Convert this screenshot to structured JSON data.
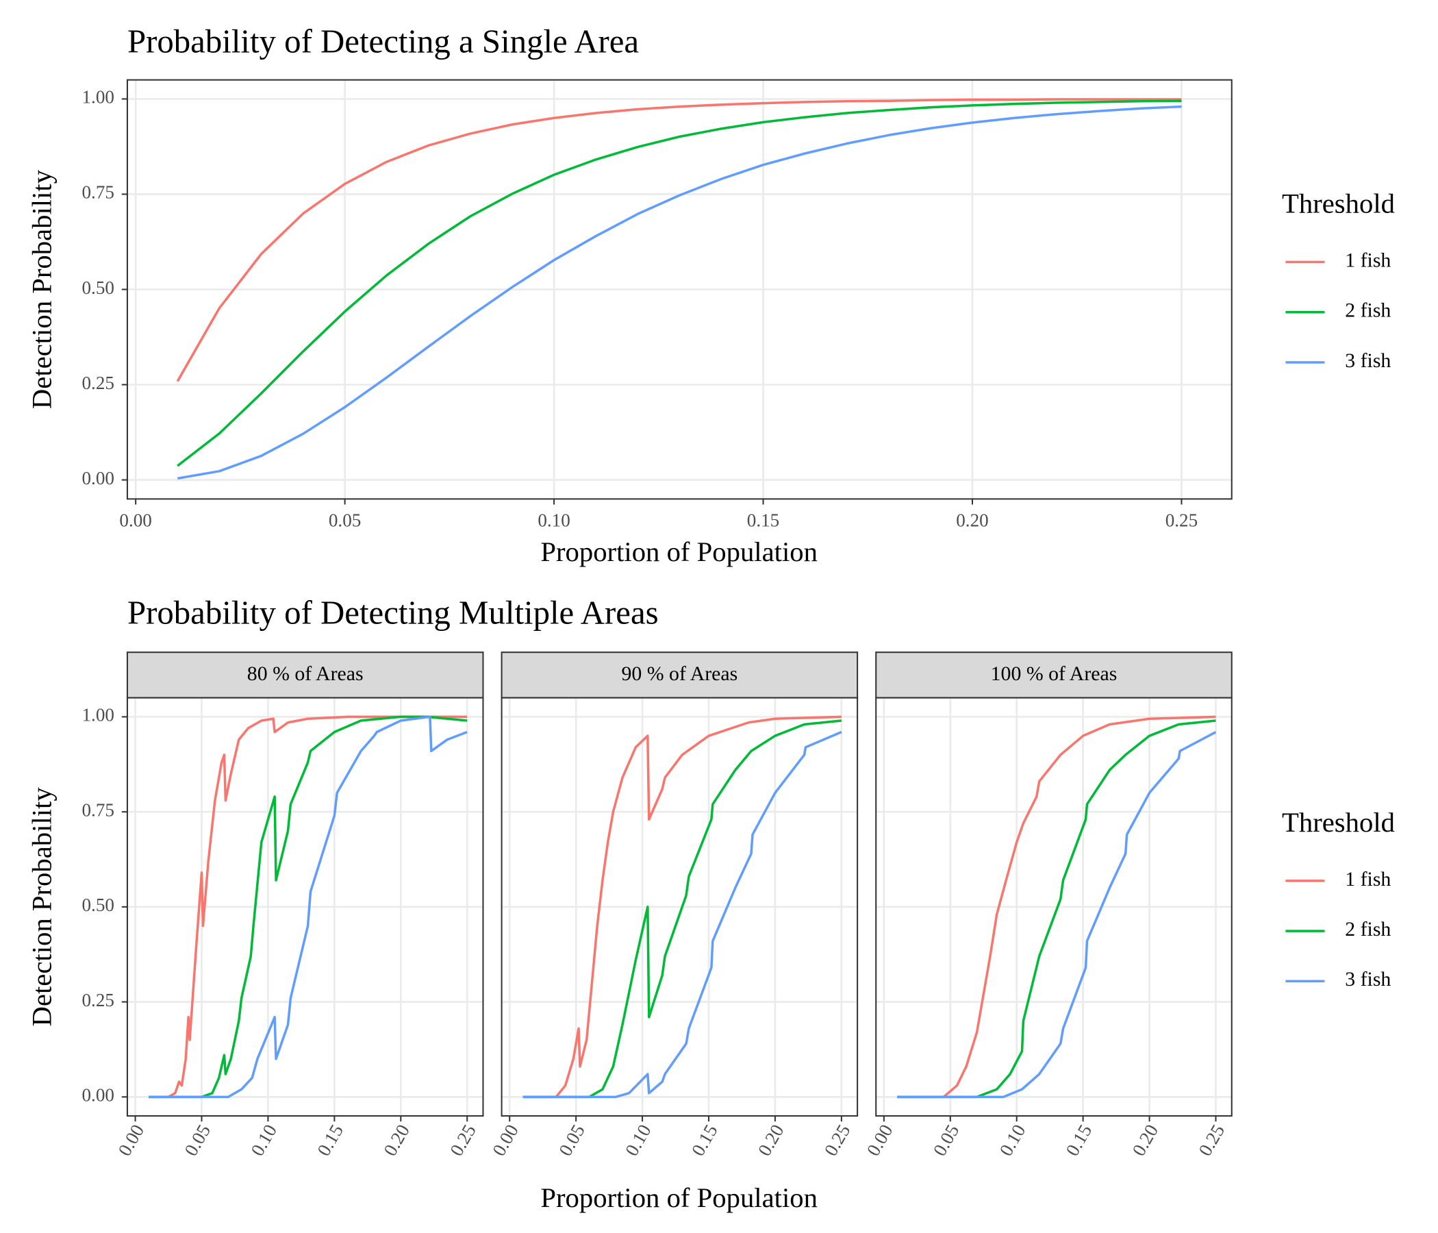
{
  "chart_data": [
    {
      "type": "line",
      "title": "Probability of Detecting a Single Area",
      "x_label": "Proportion of Population",
      "y_label": "Detection Probability",
      "legend_title": "Threshold",
      "grid": true,
      "xlim": [
        -0.002,
        0.262
      ],
      "ylim": [
        -0.05,
        1.05
      ],
      "xticks": [
        {
          "value": 0,
          "label": "0.00"
        },
        0.05,
        {
          "value": 0.1,
          "label": "0.10"
        },
        0.15,
        {
          "value": 0.2,
          "label": "0.20"
        },
        0.25
      ],
      "yticks": [
        {
          "value": 0,
          "label": "0.00"
        },
        0.25,
        {
          "value": 0.5,
          "label": "0.50"
        },
        0.75,
        {
          "value": 1,
          "label": "1.00"
        }
      ],
      "x": [
        0.01,
        0.02,
        0.03,
        0.04,
        0.05,
        0.06,
        0.07,
        0.08,
        0.09,
        0.1,
        0.11,
        0.12,
        0.13,
        0.14,
        0.15,
        0.16,
        0.17,
        0.18,
        0.19,
        0.2,
        0.21,
        0.22,
        0.23,
        0.24,
        0.25
      ],
      "series": [
        {
          "name": "1 fish",
          "color": "#F8766D",
          "values": [
            0.259,
            0.451,
            0.593,
            0.699,
            0.777,
            0.835,
            0.878,
            0.909,
            0.933,
            0.95,
            0.963,
            0.973,
            0.98,
            0.985,
            0.989,
            0.992,
            0.994,
            0.995,
            0.997,
            0.998,
            0.998,
            0.999,
            0.999,
            0.999,
            0.999
          ]
        },
        {
          "name": "2 fish",
          "color": "#00BA38",
          "values": [
            0.037,
            0.122,
            0.227,
            0.337,
            0.442,
            0.537,
            0.62,
            0.692,
            0.751,
            0.801,
            0.841,
            0.874,
            0.901,
            0.922,
            0.939,
            0.952,
            0.963,
            0.971,
            0.978,
            0.983,
            0.987,
            0.99,
            0.992,
            0.994,
            0.995
          ]
        },
        {
          "name": "3 fish",
          "color": "#619CFF",
          "values": [
            0.004,
            0.023,
            0.063,
            0.121,
            0.191,
            0.269,
            0.35,
            0.43,
            0.506,
            0.577,
            0.64,
            0.698,
            0.747,
            0.79,
            0.827,
            0.857,
            0.883,
            0.905,
            0.923,
            0.938,
            0.95,
            0.96,
            0.968,
            0.975,
            0.98
          ]
        }
      ]
    },
    {
      "type": "line",
      "title": "Probability of Detecting Multiple Areas",
      "x_label": "Proportion of Population",
      "y_label": "Detection Probability",
      "legend_title": "Threshold",
      "grid": true,
      "facets": [
        "80 % of Areas",
        "90 % of Areas",
        "100 % of Areas"
      ],
      "xlim": [
        -0.006,
        0.262
      ],
      "ylim": [
        -0.05,
        1.05
      ],
      "xticks": [
        {
          "value": 0,
          "label": "0.00"
        },
        0.05,
        {
          "value": 0.1,
          "label": "0.10"
        },
        0.15,
        {
          "value": 0.2,
          "label": "0.20"
        },
        0.25
      ],
      "yticks": [
        {
          "value": 0,
          "label": "0.00"
        },
        0.25,
        {
          "value": 0.5,
          "label": "0.50"
        },
        0.75,
        {
          "value": 1,
          "label": "1.00"
        }
      ],
      "series": [
        {
          "name": "1 fish",
          "color": "#F8766D",
          "facets": [
            {
              "x": [
                0.01,
                0.025,
                0.03,
                0.033,
                0.035,
                0.038,
                0.04,
                0.041,
                0.043,
                0.046,
                0.05,
                0.051,
                0.055,
                0.06,
                0.065,
                0.067,
                0.068,
                0.072,
                0.078,
                0.085,
                0.095,
                0.104,
                0.105,
                0.115,
                0.13,
                0.16,
                0.25
              ],
              "values": [
                0,
                0,
                0.01,
                0.04,
                0.03,
                0.1,
                0.21,
                0.15,
                0.25,
                0.4,
                0.59,
                0.45,
                0.62,
                0.78,
                0.88,
                0.9,
                0.78,
                0.85,
                0.94,
                0.97,
                0.99,
                0.995,
                0.96,
                0.985,
                0.995,
                1,
                1
              ]
            },
            {
              "x": [
                0.01,
                0.035,
                0.042,
                0.048,
                0.052,
                0.053,
                0.058,
                0.062,
                0.066,
                0.07,
                0.074,
                0.078,
                0.085,
                0.095,
                0.104,
                0.105,
                0.115,
                0.117,
                0.13,
                0.15,
                0.18,
                0.2,
                0.25
              ],
              "values": [
                0,
                0,
                0.03,
                0.1,
                0.18,
                0.08,
                0.15,
                0.3,
                0.45,
                0.57,
                0.67,
                0.75,
                0.84,
                0.92,
                0.95,
                0.73,
                0.81,
                0.84,
                0.9,
                0.95,
                0.985,
                0.995,
                1
              ]
            },
            {
              "x": [
                0.01,
                0.045,
                0.055,
                0.062,
                0.07,
                0.075,
                0.08,
                0.085,
                0.092,
                0.1,
                0.105,
                0.115,
                0.117,
                0.133,
                0.15,
                0.17,
                0.2,
                0.25
              ],
              "values": [
                0,
                0,
                0.03,
                0.08,
                0.17,
                0.27,
                0.37,
                0.48,
                0.57,
                0.67,
                0.72,
                0.79,
                0.83,
                0.9,
                0.95,
                0.98,
                0.995,
                1
              ]
            }
          ]
        },
        {
          "name": "2 fish",
          "color": "#00BA38",
          "facets": [
            {
              "x": [
                0.01,
                0.05,
                0.058,
                0.063,
                0.067,
                0.068,
                0.072,
                0.078,
                0.08,
                0.087,
                0.089,
                0.095,
                0.105,
                0.106,
                0.115,
                0.117,
                0.13,
                0.132,
                0.15,
                0.17,
                0.2,
                0.22,
                0.25
              ],
              "values": [
                0,
                0,
                0.01,
                0.05,
                0.11,
                0.06,
                0.1,
                0.2,
                0.26,
                0.37,
                0.45,
                0.67,
                0.79,
                0.57,
                0.7,
                0.77,
                0.88,
                0.91,
                0.96,
                0.99,
                1,
                1,
                0.99
              ]
            },
            {
              "x": [
                0.01,
                0.06,
                0.07,
                0.078,
                0.085,
                0.095,
                0.104,
                0.105,
                0.115,
                0.117,
                0.133,
                0.135,
                0.152,
                0.153,
                0.17,
                0.182,
                0.2,
                0.222,
                0.25
              ],
              "values": [
                0,
                0,
                0.02,
                0.08,
                0.19,
                0.36,
                0.5,
                0.21,
                0.32,
                0.37,
                0.53,
                0.58,
                0.73,
                0.77,
                0.86,
                0.91,
                0.95,
                0.98,
                0.99
              ]
            },
            {
              "x": [
                0.01,
                0.07,
                0.085,
                0.095,
                0.104,
                0.105,
                0.117,
                0.133,
                0.135,
                0.152,
                0.153,
                0.17,
                0.182,
                0.2,
                0.222,
                0.25
              ],
              "values": [
                0,
                0,
                0.02,
                0.06,
                0.12,
                0.2,
                0.37,
                0.52,
                0.57,
                0.73,
                0.77,
                0.86,
                0.9,
                0.95,
                0.98,
                0.99
              ]
            }
          ]
        },
        {
          "name": "3 fish",
          "color": "#619CFF",
          "facets": [
            {
              "x": [
                0.01,
                0.07,
                0.08,
                0.088,
                0.092,
                0.105,
                0.106,
                0.115,
                0.117,
                0.13,
                0.132,
                0.15,
                0.152,
                0.17,
                0.18,
                0.182,
                0.2,
                0.222,
                0.223,
                0.235,
                0.25
              ],
              "values": [
                0,
                0,
                0.02,
                0.05,
                0.1,
                0.21,
                0.1,
                0.19,
                0.26,
                0.45,
                0.54,
                0.74,
                0.8,
                0.91,
                0.95,
                0.96,
                0.99,
                1,
                0.91,
                0.94,
                0.96
              ]
            },
            {
              "x": [
                0.01,
                0.08,
                0.09,
                0.104,
                0.105,
                0.115,
                0.117,
                0.133,
                0.135,
                0.152,
                0.153,
                0.17,
                0.182,
                0.183,
                0.2,
                0.222,
                0.223,
                0.25
              ],
              "values": [
                0,
                0,
                0.01,
                0.06,
                0.01,
                0.04,
                0.06,
                0.14,
                0.18,
                0.34,
                0.41,
                0.55,
                0.64,
                0.69,
                0.8,
                0.9,
                0.92,
                0.96
              ]
            },
            {
              "x": [
                0.01,
                0.09,
                0.104,
                0.117,
                0.133,
                0.135,
                0.152,
                0.153,
                0.17,
                0.182,
                0.183,
                0.2,
                0.222,
                0.223,
                0.25
              ],
              "values": [
                0,
                0,
                0.02,
                0.06,
                0.14,
                0.18,
                0.34,
                0.41,
                0.55,
                0.64,
                0.69,
                0.8,
                0.89,
                0.91,
                0.96
              ]
            }
          ]
        }
      ]
    }
  ]
}
